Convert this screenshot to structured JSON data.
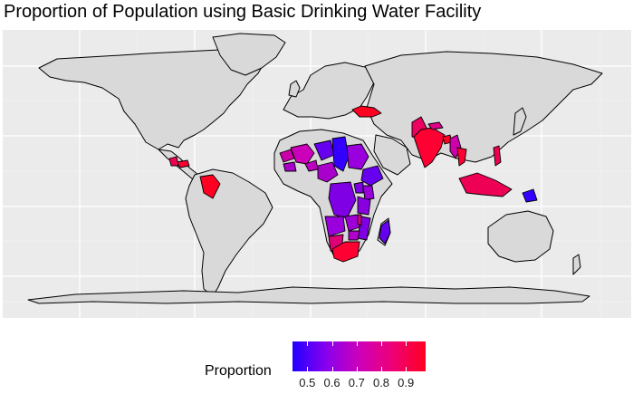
{
  "title": "Proportion of Population using Basic Drinking Water Facility",
  "map": {
    "type": "choropleth",
    "projection": "equirectangular",
    "background_color": "#ebebeb",
    "land_color": "#d9d9d9",
    "border_color": "#000000",
    "grid": true,
    "highlighted_regions": [
      {
        "region": "Turkey",
        "value": 0.97
      },
      {
        "region": "Pakistan",
        "value": 0.92
      },
      {
        "region": "India",
        "value": 0.93
      },
      {
        "region": "Nepal",
        "value": 0.85
      },
      {
        "region": "Bangladesh",
        "value": 0.97
      },
      {
        "region": "Myanmar",
        "value": 0.8
      },
      {
        "region": "Thailand",
        "value": 0.95
      },
      {
        "region": "Philippines",
        "value": 0.92
      },
      {
        "region": "Indonesia",
        "value": 0.89
      },
      {
        "region": "Papua New Guinea",
        "value": 0.45
      },
      {
        "region": "Colombia",
        "value": 0.97
      },
      {
        "region": "Honduras",
        "value": 0.95
      },
      {
        "region": "Guatemala",
        "value": 0.9
      },
      {
        "region": "Senegal",
        "value": 0.8
      },
      {
        "region": "Mali",
        "value": 0.78
      },
      {
        "region": "Guinea",
        "value": 0.7
      },
      {
        "region": "Burkina Faso",
        "value": 0.75
      },
      {
        "region": "Niger",
        "value": 0.5
      },
      {
        "region": "Nigeria",
        "value": 0.7
      },
      {
        "region": "Chad",
        "value": 0.45
      },
      {
        "region": "Sudan",
        "value": 0.6
      },
      {
        "region": "Ethiopia",
        "value": 0.5
      },
      {
        "region": "Kenya",
        "value": 0.6
      },
      {
        "region": "Uganda",
        "value": 0.55
      },
      {
        "region": "Tanzania",
        "value": 0.57
      },
      {
        "region": "DR Congo",
        "value": 0.55
      },
      {
        "region": "Angola",
        "value": 0.6
      },
      {
        "region": "Zambia",
        "value": 0.62
      },
      {
        "region": "Mozambique",
        "value": 0.55
      },
      {
        "region": "Malawi",
        "value": 0.85
      },
      {
        "region": "Zimbabwe",
        "value": 0.65
      },
      {
        "region": "Namibia",
        "value": 0.82
      },
      {
        "region": "South Africa",
        "value": 0.93
      },
      {
        "region": "Madagascar",
        "value": 0.5
      }
    ]
  },
  "legend": {
    "title": "Proportion",
    "ticks": [
      "0.5",
      "0.6",
      "0.7",
      "0.8",
      "0.9"
    ],
    "tick_values": [
      0.5,
      0.6,
      0.7,
      0.8,
      0.9
    ],
    "range": [
      0.44,
      0.98
    ],
    "low_color": "#2200ff",
    "high_color": "#ff0022"
  }
}
